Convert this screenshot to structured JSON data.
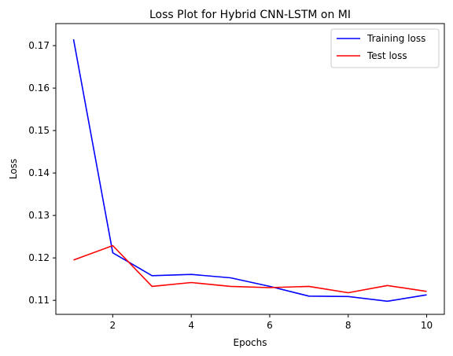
{
  "chart_data": {
    "type": "line",
    "title": "Loss Plot for Hybrid CNN-LSTM on MI",
    "xlabel": "Epochs",
    "ylabel": "Loss",
    "xlim": [
      0.55,
      10.45
    ],
    "ylim": [
      0.1067,
      0.1752
    ],
    "xticks": [
      2,
      4,
      6,
      8,
      10
    ],
    "yticks": [
      0.11,
      0.12,
      0.13,
      0.14,
      0.15,
      0.16,
      0.17
    ],
    "xtick_labels": [
      "2",
      "4",
      "6",
      "8",
      "10"
    ],
    "ytick_labels": [
      "0.11",
      "0.12",
      "0.13",
      "0.14",
      "0.15",
      "0.16",
      "0.17"
    ],
    "grid": false,
    "legend_position": "top-right",
    "x": [
      1,
      2,
      3,
      4,
      5,
      6,
      7,
      8,
      9,
      10
    ],
    "series": [
      {
        "name": "Training loss",
        "color": "#0000ff",
        "values": [
          0.1715,
          0.1212,
          0.1158,
          0.1161,
          0.1153,
          0.1133,
          0.111,
          0.1109,
          0.1098,
          0.1113
        ]
      },
      {
        "name": "Test loss",
        "color": "#ff0000",
        "values": [
          0.1195,
          0.1229,
          0.1133,
          0.1142,
          0.1133,
          0.113,
          0.1133,
          0.1118,
          0.1135,
          0.1121
        ]
      }
    ]
  }
}
